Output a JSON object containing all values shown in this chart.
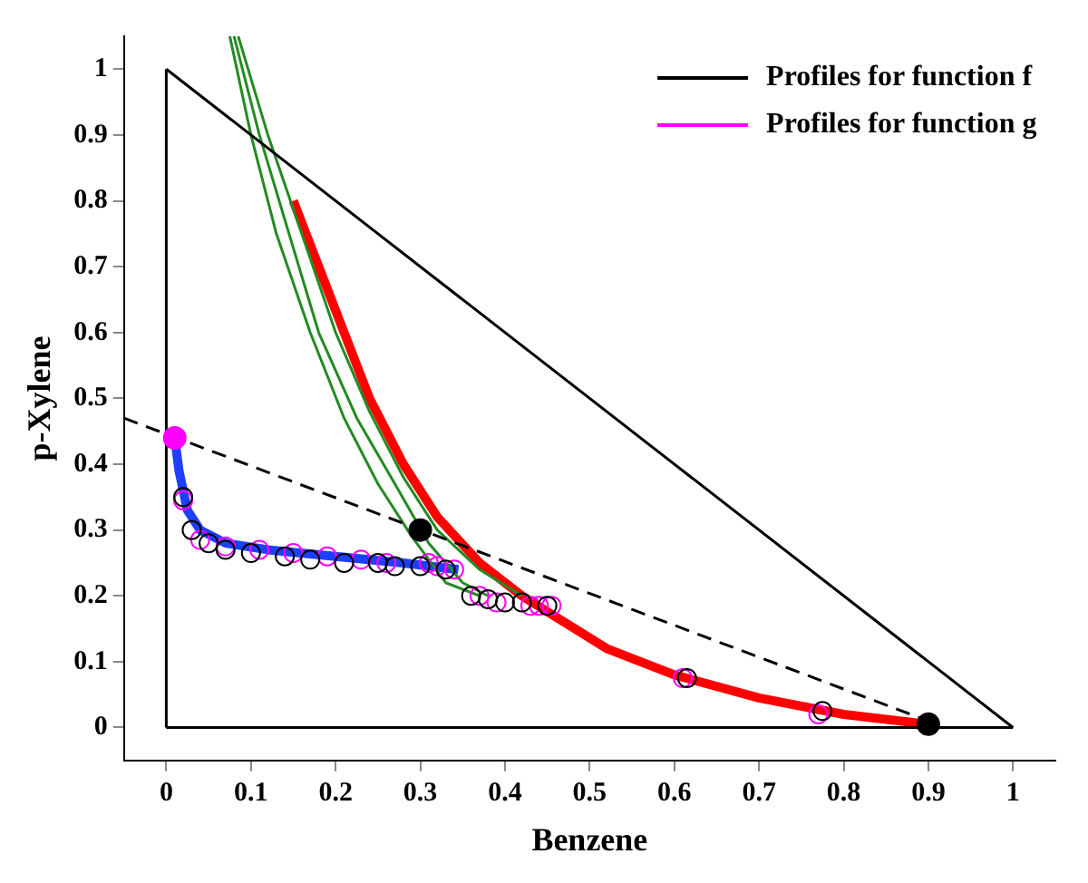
{
  "chart_data": {
    "type": "line",
    "xlabel": "Benzene",
    "ylabel": "p-Xylene",
    "xlim": [
      -0.05,
      1.05
    ],
    "ylim": [
      -0.05,
      1.05
    ],
    "xticks": [
      0,
      0.1,
      0.2,
      0.3,
      0.4,
      0.5,
      0.6,
      0.7,
      0.8,
      0.9,
      1
    ],
    "yticks": [
      0,
      0.1,
      0.2,
      0.3,
      0.4,
      0.5,
      0.6,
      0.7,
      0.8,
      0.9,
      1
    ],
    "grid": false,
    "legend": "top right",
    "marker": "none",
    "line_style": "solid",
    "series": [
      {
        "color": "#000000",
        "x": [
          0,
          0
        ],
        "values": [
          0,
          1
        ]
      },
      {
        "color": "#000000",
        "x": [
          0,
          1
        ],
        "values": [
          1,
          0
        ]
      },
      {
        "color": "#000000",
        "x": [
          0,
          1
        ],
        "values": [
          0,
          0
        ]
      },
      {
        "color": "#000000",
        "line_style": "dashed",
        "x": [
          -0.05,
          0.9
        ],
        "values": [
          0.47,
          0.01
        ]
      },
      {
        "color": "#228b22",
        "x": [
          0.075,
          0.1,
          0.13,
          0.17,
          0.21,
          0.25,
          0.29,
          0.33,
          0.37
        ],
        "values": [
          1.05,
          0.9,
          0.75,
          0.6,
          0.47,
          0.37,
          0.29,
          0.22,
          0.2
        ]
      },
      {
        "color": "#228b22",
        "x": [
          0.08,
          0.11,
          0.145,
          0.18,
          0.225,
          0.27,
          0.31,
          0.35,
          0.38
        ],
        "values": [
          1.05,
          0.9,
          0.75,
          0.6,
          0.47,
          0.37,
          0.28,
          0.22,
          0.2
        ]
      },
      {
        "color": "#228b22",
        "x": [
          0.085,
          0.12,
          0.16,
          0.2,
          0.24,
          0.28,
          0.32,
          0.37,
          0.42
        ],
        "values": [
          1.05,
          0.9,
          0.75,
          0.6,
          0.48,
          0.38,
          0.3,
          0.24,
          0.2
        ]
      },
      {
        "color": "#ff0000",
        "x": [
          0.15,
          0.18,
          0.21,
          0.24,
          0.28,
          0.32,
          0.37,
          0.42,
          0.47,
          0.52,
          0.6,
          0.7,
          0.8,
          0.9
        ],
        "values": [
          0.8,
          0.7,
          0.6,
          0.5,
          0.4,
          0.32,
          0.25,
          0.2,
          0.16,
          0.12,
          0.08,
          0.045,
          0.02,
          0.005
        ]
      },
      {
        "color": "#1f3fff",
        "x": [
          0.01,
          0.015,
          0.025,
          0.04,
          0.07,
          0.12,
          0.2,
          0.28,
          0.345
        ],
        "values": [
          0.44,
          0.39,
          0.33,
          0.3,
          0.28,
          0.27,
          0.26,
          0.25,
          0.24
        ]
      },
      {
        "name": "Profiles for function f",
        "type": "scatter",
        "color": "#000000",
        "marker": "circle",
        "x": [
          0.02,
          0.03,
          0.05,
          0.07,
          0.1,
          0.14,
          0.17,
          0.21,
          0.25,
          0.27,
          0.3,
          0.33,
          0.36,
          0.38,
          0.4,
          0.42,
          0.45,
          0.615,
          0.775
        ],
        "values": [
          0.35,
          0.3,
          0.28,
          0.27,
          0.265,
          0.26,
          0.255,
          0.25,
          0.25,
          0.245,
          0.245,
          0.24,
          0.2,
          0.195,
          0.19,
          0.19,
          0.185,
          0.075,
          0.025
        ]
      },
      {
        "name": "Profiles for function g",
        "type": "scatter",
        "color": "#ff00ff",
        "marker": "circle",
        "x": [
          0.02,
          0.04,
          0.07,
          0.11,
          0.15,
          0.19,
          0.23,
          0.26,
          0.31,
          0.32,
          0.34,
          0.37,
          0.39,
          0.43,
          0.44,
          0.455,
          0.61,
          0.77
        ],
        "values": [
          0.345,
          0.285,
          0.275,
          0.27,
          0.265,
          0.26,
          0.255,
          0.25,
          0.25,
          0.245,
          0.24,
          0.2,
          0.19,
          0.185,
          0.185,
          0.185,
          0.075,
          0.02
        ]
      },
      {
        "type": "scatter",
        "color": "#000000",
        "marker": "circle",
        "x": [
          0.3,
          0.9
        ],
        "values": [
          0.3,
          0.005
        ]
      },
      {
        "type": "scatter",
        "color": "#ff00ff",
        "marker": "circle",
        "x": [
          0.01
        ],
        "values": [
          0.44
        ]
      }
    ]
  }
}
